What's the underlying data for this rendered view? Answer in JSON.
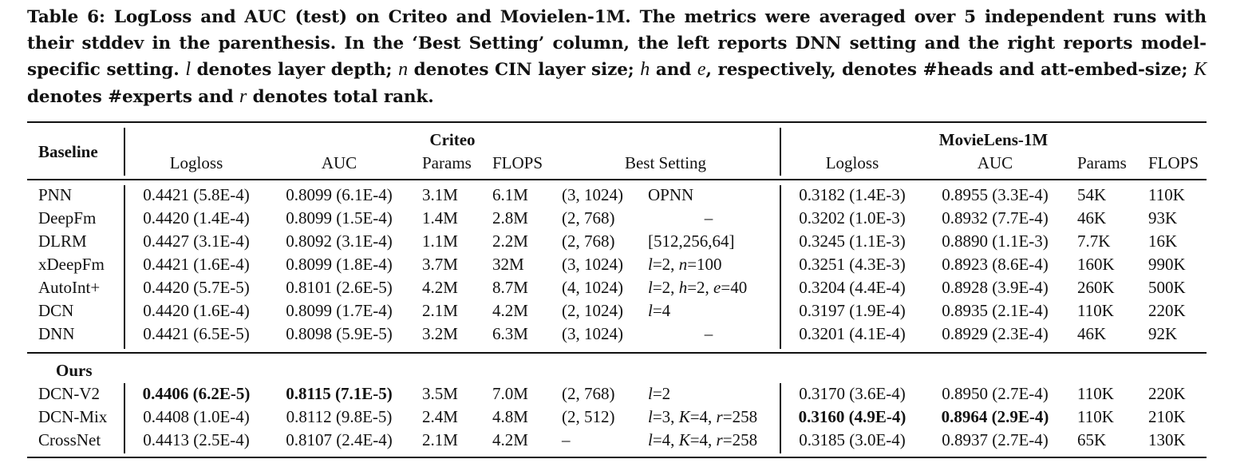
{
  "caption": {
    "p1": "Table 6: LogLoss and AUC (test) on Criteo and Movielen-1M. The metrics were averaged over 5 independent runs with their stddev in the parenthesis. In the ‘Best Setting’ column, the left reports DNN setting and the right reports model-specific setting. ",
    "v_l": "l",
    "p2": " denotes layer depth; ",
    "v_n": "n",
    "p3": " denotes CIN layer size; ",
    "v_h": "h",
    "p4": " and ",
    "v_e": "e",
    "p5": ", respectively, denotes #heads and att-embed-size; ",
    "v_K": "K",
    "p6": " denotes #experts and ",
    "v_r": "r",
    "p7": " denotes total rank."
  },
  "header": {
    "baseline": "Baseline",
    "criteo": "Criteo",
    "movielens": "MovieLens-1M",
    "criteo_cols": [
      "Logloss",
      "AUC",
      "Params",
      "FLOPS",
      "Best Setting"
    ],
    "movielens_cols": [
      "Logloss",
      "AUC",
      "Params",
      "FLOPS"
    ]
  },
  "ours_label": "Ours",
  "baselines": [
    {
      "model": "PNN",
      "c_logloss": "0.4421 (5.8E-4)",
      "c_auc": "0.8099 (6.1E-4)",
      "c_params": "3.1M",
      "c_flops": "6.1M",
      "dnn": "(3, 1024)",
      "specific": "OPNN",
      "m_logloss": "0.3182 (1.4E-3)",
      "m_auc": "0.8955 (3.3E-4)",
      "m_params": "54K",
      "m_flops": "110K"
    },
    {
      "model": "DeepFm",
      "c_logloss": "0.4420 (1.4E-4)",
      "c_auc": "0.8099 (1.5E-4)",
      "c_params": "1.4M",
      "c_flops": "2.8M",
      "dnn": "(2, 768)",
      "specific": "–",
      "m_logloss": "0.3202 (1.0E-3)",
      "m_auc": "0.8932 (7.7E-4)",
      "m_params": "46K",
      "m_flops": "93K"
    },
    {
      "model": "DLRM",
      "c_logloss": "0.4427 (3.1E-4)",
      "c_auc": "0.8092 (3.1E-4)",
      "c_params": "1.1M",
      "c_flops": "2.2M",
      "dnn": "(2, 768)",
      "specific": "[512,256,64]",
      "m_logloss": "0.3245 (1.1E-3)",
      "m_auc": "0.8890 (1.1E-3)",
      "m_params": "7.7K",
      "m_flops": "16K"
    },
    {
      "model": "xDeepFm",
      "c_logloss": "0.4421 (1.6E-4)",
      "c_auc": "0.8099 (1.8E-4)",
      "c_params": "3.7M",
      "c_flops": "32M",
      "dnn": "(3, 1024)",
      "specific": "l=2, n=100",
      "m_logloss": "0.3251 (4.3E-3)",
      "m_auc": "0.8923 (8.6E-4)",
      "m_params": "160K",
      "m_flops": "990K"
    },
    {
      "model": "AutoInt+",
      "c_logloss": "0.4420 (5.7E-5)",
      "c_auc": "0.8101 (2.6E-5)",
      "c_params": "4.2M",
      "c_flops": "8.7M",
      "dnn": "(4, 1024)",
      "specific": "l=2, h=2, e=40",
      "m_logloss": "0.3204 (4.4E-4)",
      "m_auc": "0.8928 (3.9E-4)",
      "m_params": "260K",
      "m_flops": "500K"
    },
    {
      "model": "DCN",
      "c_logloss": "0.4420 (1.6E-4)",
      "c_auc": "0.8099 (1.7E-4)",
      "c_params": "2.1M",
      "c_flops": "4.2M",
      "dnn": "(2, 1024)",
      "specific": "l=4",
      "m_logloss": "0.3197 (1.9E-4)",
      "m_auc": "0.8935 (2.1E-4)",
      "m_params": "110K",
      "m_flops": "220K"
    },
    {
      "model": "DNN",
      "c_logloss": "0.4421 (6.5E-5)",
      "c_auc": "0.8098 (5.9E-5)",
      "c_params": "3.2M",
      "c_flops": "6.3M",
      "dnn": "(3, 1024)",
      "specific": "–",
      "m_logloss": "0.3201 (4.1E-4)",
      "m_auc": "0.8929 (2.3E-4)",
      "m_params": "46K",
      "m_flops": "92K"
    }
  ],
  "ours": [
    {
      "model": "DCN-V2",
      "c_logloss": "0.4406 (6.2E-5)",
      "c_logloss_bold": true,
      "c_auc": "0.8115 (7.1E-5)",
      "c_auc_bold": true,
      "c_params": "3.5M",
      "c_flops": "7.0M",
      "dnn": "(2, 768)",
      "specific": "l=2",
      "m_logloss": "0.3170 (3.6E-4)",
      "m_auc": "0.8950 (2.7E-4)",
      "m_params": "110K",
      "m_flops": "220K"
    },
    {
      "model": "DCN-Mix",
      "c_logloss": "0.4408 (1.0E-4)",
      "c_auc": "0.8112 (9.8E-5)",
      "c_params": "2.4M",
      "c_flops": "4.8M",
      "dnn": "(2, 512)",
      "specific": "l=3, K=4, r=258",
      "m_logloss": "0.3160 (4.9E-4)",
      "m_logloss_bold": true,
      "m_auc": "0.8964 (2.9E-4)",
      "m_auc_bold": true,
      "m_params": "110K",
      "m_flops": "210K"
    },
    {
      "model": "CrossNet",
      "c_logloss": "0.4413 (2.5E-4)",
      "c_auc": "0.8107 (2.4E-4)",
      "c_params": "2.1M",
      "c_flops": "4.2M",
      "dnn": "–",
      "specific": "l=4, K=4, r=258",
      "m_logloss": "0.3185 (3.0E-4)",
      "m_auc": "0.8937 (2.7E-4)",
      "m_params": "65K",
      "m_flops": "130K"
    }
  ]
}
